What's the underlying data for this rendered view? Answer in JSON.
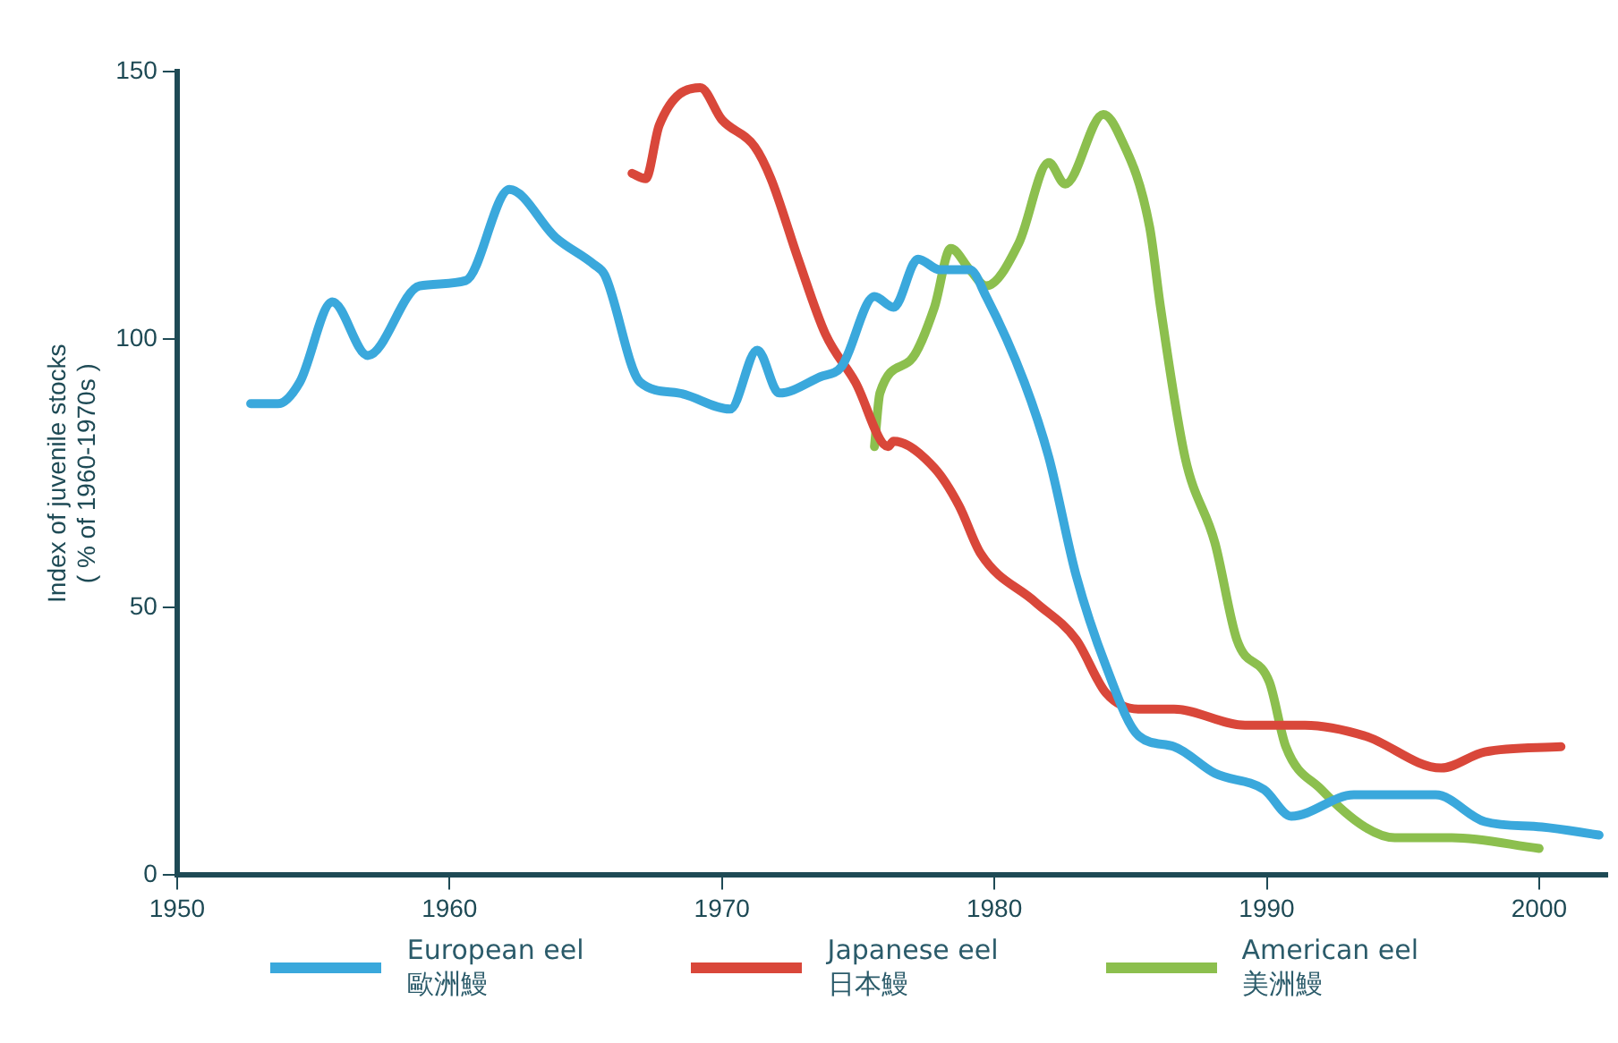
{
  "chart_data": {
    "type": "line",
    "ylabel": "Index of juvenile stocks\n( % of 1960-1970s )",
    "xlim": [
      1950,
      2002.5
    ],
    "xticks": [
      1950,
      1960,
      1970,
      1980,
      1990,
      2000
    ],
    "ylim": [
      0,
      150
    ],
    "yticks": [
      0,
      50,
      100,
      150
    ],
    "grid": false,
    "legend": "bottom",
    "marker": "none",
    "line_style": "solid",
    "series": [
      {
        "name": "European eel\n歐洲鰻",
        "color": "#3aa8dc",
        "x": [
          1952.7,
          1953.7,
          1954.5,
          1955.7,
          1957.0,
          1958.9,
          1960.6,
          1962.2,
          1963.9,
          1965.3,
          1965.7,
          1967.0,
          1968.4,
          1970.3,
          1971.3,
          1972.1,
          1973.6,
          1974.4,
          1975.6,
          1976.3,
          1977.2,
          1978.0,
          1979.1,
          1979.7,
          1981.1,
          1982.0,
          1983.0,
          1984.1,
          1985.3,
          1986.6,
          1988.1,
          1989.9,
          1990.9,
          1993.2,
          1996.2,
          1998.0,
          2000.1,
          2002.2
        ],
        "values": [
          88,
          88,
          92,
          107,
          97,
          110,
          111,
          128,
          119,
          114,
          112,
          92,
          90,
          87,
          98,
          90,
          93,
          95,
          108,
          106,
          115,
          113,
          113,
          108,
          92,
          78,
          56,
          39,
          26,
          24,
          19,
          16,
          11,
          15,
          15,
          10,
          9,
          7.5
        ]
      },
      {
        "name": "Japanese eel\n日本鰻",
        "color": "#d9473a",
        "x": [
          1966.7,
          1967.2,
          1967.7,
          1969.2,
          1970.0,
          1971.2,
          1971.8,
          1972.8,
          1973.8,
          1974.9,
          1976.1,
          1976.3,
          1977.8,
          1978.7,
          1979.5,
          1981.5,
          1983.0,
          1984.1,
          1985.3,
          1986.6,
          1989.2,
          1991.4,
          1993.6,
          1996.4,
          1998.0,
          2000.8
        ],
        "values": [
          131,
          130,
          140,
          147,
          141,
          136,
          130,
          115,
          101,
          92,
          80,
          81,
          76,
          69,
          60,
          51,
          44,
          34,
          31,
          31,
          28,
          28,
          26,
          20,
          23,
          24
        ]
      },
      {
        "name": "American eel\n美洲鰻",
        "color": "#8cbf4e",
        "x": [
          1975.6,
          1975.8,
          1976.9,
          1977.8,
          1978.4,
          1979.1,
          1979.7,
          1980.9,
          1982.0,
          1982.6,
          1984.0,
          1984.6,
          1985.7,
          1986.1,
          1987.0,
          1988.1,
          1988.9,
          1990.1,
          1990.7,
          1992.0,
          1993.6,
          1994.7,
          1996.8,
          2000.0
        ],
        "values": [
          80,
          90,
          96,
          106,
          117,
          113,
          110,
          118,
          133,
          129,
          142,
          138,
          121,
          106,
          78,
          62,
          44,
          36,
          24,
          16,
          9,
          7,
          7,
          5
        ]
      }
    ]
  }
}
